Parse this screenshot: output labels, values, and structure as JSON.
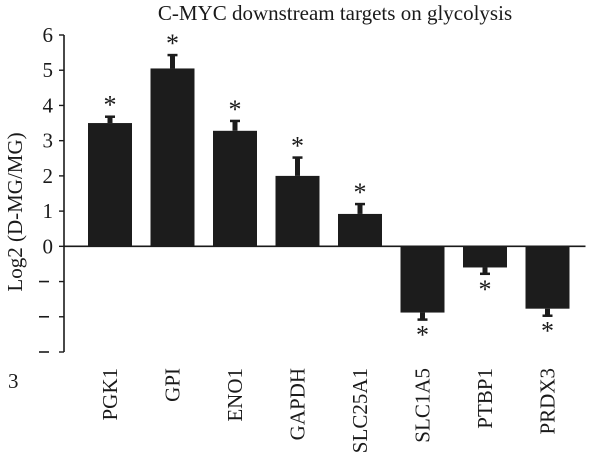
{
  "chart_data": {
    "type": "bar",
    "title": "C-MYC downstream targets on glycolysis",
    "ylabel": "Log2 (D-MG/MG)",
    "xlabel": "",
    "ylim": [
      -3,
      6
    ],
    "y_ticks": [
      6,
      5,
      4,
      3,
      2,
      1,
      0,
      -1,
      -2,
      -3
    ],
    "y_tick_labels": [
      "6",
      "5",
      "4",
      "3",
      "2",
      "1",
      "0",
      "–",
      "–",
      "–"
    ],
    "bottom_tick_label": "3",
    "categories": [
      "PGK1",
      "GPI",
      "ENO1",
      "GAPDH",
      "SLC25A1",
      "SLC1A5",
      "PTBP1",
      "PRDX3"
    ],
    "values": [
      3.5,
      5.05,
      3.28,
      2.0,
      0.92,
      -1.88,
      -0.6,
      -1.77
    ],
    "errors": [
      0.18,
      0.38,
      0.28,
      0.52,
      0.28,
      0.2,
      0.18,
      0.2
    ],
    "annotation": "*",
    "significance": [
      true,
      true,
      true,
      true,
      true,
      true,
      true,
      true
    ],
    "bar_color": "#1c1c1c",
    "grid": false,
    "legend": "none"
  }
}
